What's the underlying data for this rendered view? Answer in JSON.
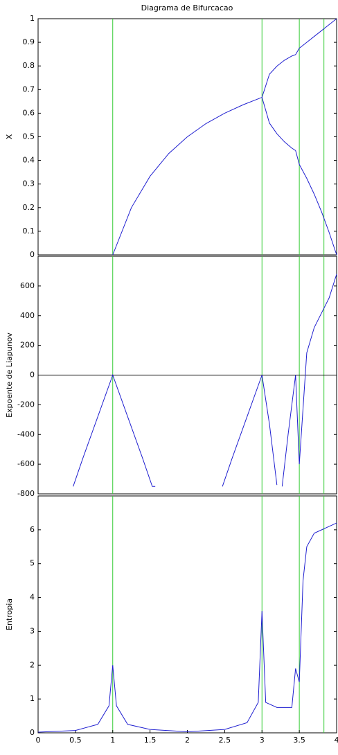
{
  "chart_data": [
    {
      "type": "line",
      "title": "Diagrama de Bifurcacao",
      "ylabel": "X",
      "x": [
        1,
        1.25,
        1.5,
        1.75,
        2,
        2.25,
        2.5,
        2.75,
        3,
        3.1,
        3.2,
        3.3,
        3.4,
        3.45,
        3.5,
        3.6,
        3.7,
        3.8,
        3.9,
        4
      ],
      "series": [
        {
          "color": "#1f1fd0",
          "values": [
            0,
            0.2,
            0.333,
            0.429,
            0.5,
            0.556,
            0.6,
            0.636,
            0.667,
            0.765,
            0.799,
            0.824,
            0.842,
            0.848,
            0.875,
            0.9,
            0.925,
            0.95,
            0.975,
            1
          ]
        },
        {
          "color": "#1f1fd0",
          "values": [
            null,
            null,
            null,
            null,
            null,
            null,
            null,
            null,
            0.667,
            0.558,
            0.513,
            0.479,
            0.452,
            0.442,
            0.383,
            0.324,
            0.257,
            0.181,
            0.095,
            0
          ]
        }
      ],
      "xlim": [
        0,
        4
      ],
      "ylim": [
        0,
        1
      ],
      "yticks": [
        0,
        0.1,
        0.2,
        0.3,
        0.4,
        0.5,
        0.6,
        0.7,
        0.8,
        0.9,
        1
      ],
      "vlines": [
        1,
        3,
        3.5,
        3.83
      ],
      "vline_color": "#33cc33"
    },
    {
      "type": "line",
      "ylabel": "Expoente de Liapunov",
      "x": [
        0.47,
        0.6,
        0.8,
        1,
        1.2,
        1.4,
        1.53,
        1.57,
        2,
        2.47,
        2.6,
        2.8,
        3,
        3.1,
        3.2,
        3.23,
        3.27,
        3.35,
        3.45,
        3.5,
        3.6,
        3.7,
        3.8,
        3.9,
        4
      ],
      "series": [
        {
          "color": "#1f1fd0",
          "values": [
            -750,
            -560,
            -280,
            0,
            -280,
            -560,
            -750,
            -750,
            null,
            -750,
            -560,
            -280,
            0,
            -330,
            -740,
            null,
            -750,
            -400,
            0,
            -600,
            150,
            320,
            420,
            520,
            680
          ]
        }
      ],
      "xlim": [
        0,
        4
      ],
      "ylim": [
        -800,
        800
      ],
      "yticks": [
        -800,
        -600,
        -400,
        -200,
        0,
        200,
        400,
        600
      ],
      "hline": 0,
      "vlines": [
        1,
        3,
        3.5,
        3.83
      ],
      "vline_color": "#33cc33"
    },
    {
      "type": "line",
      "ylabel": "Entropia",
      "x": [
        0,
        0.5,
        0.8,
        0.95,
        1,
        1.05,
        1.2,
        1.5,
        2,
        2.5,
        2.8,
        2.95,
        3,
        3.05,
        3.2,
        3.4,
        3.45,
        3.5,
        3.55,
        3.6,
        3.7,
        3.8,
        3.9,
        4
      ],
      "series": [
        {
          "color": "#1f1fd0",
          "values": [
            0.02,
            0.07,
            0.25,
            0.8,
            2.0,
            0.8,
            0.25,
            0.1,
            0.03,
            0.1,
            0.3,
            0.9,
            3.6,
            0.9,
            0.75,
            0.75,
            1.9,
            1.5,
            4.5,
            5.5,
            5.9,
            6.0,
            6.1,
            6.2
          ]
        }
      ],
      "xlim": [
        0,
        4
      ],
      "ylim": [
        0,
        7
      ],
      "yticks": [
        0,
        1,
        2,
        3,
        4,
        5,
        6
      ],
      "xticks": [
        0,
        0.5,
        1,
        1.5,
        2,
        2.5,
        3,
        3.5,
        4
      ],
      "vlines": [
        1,
        3,
        3.5,
        3.83
      ],
      "vline_color": "#33cc33"
    }
  ]
}
